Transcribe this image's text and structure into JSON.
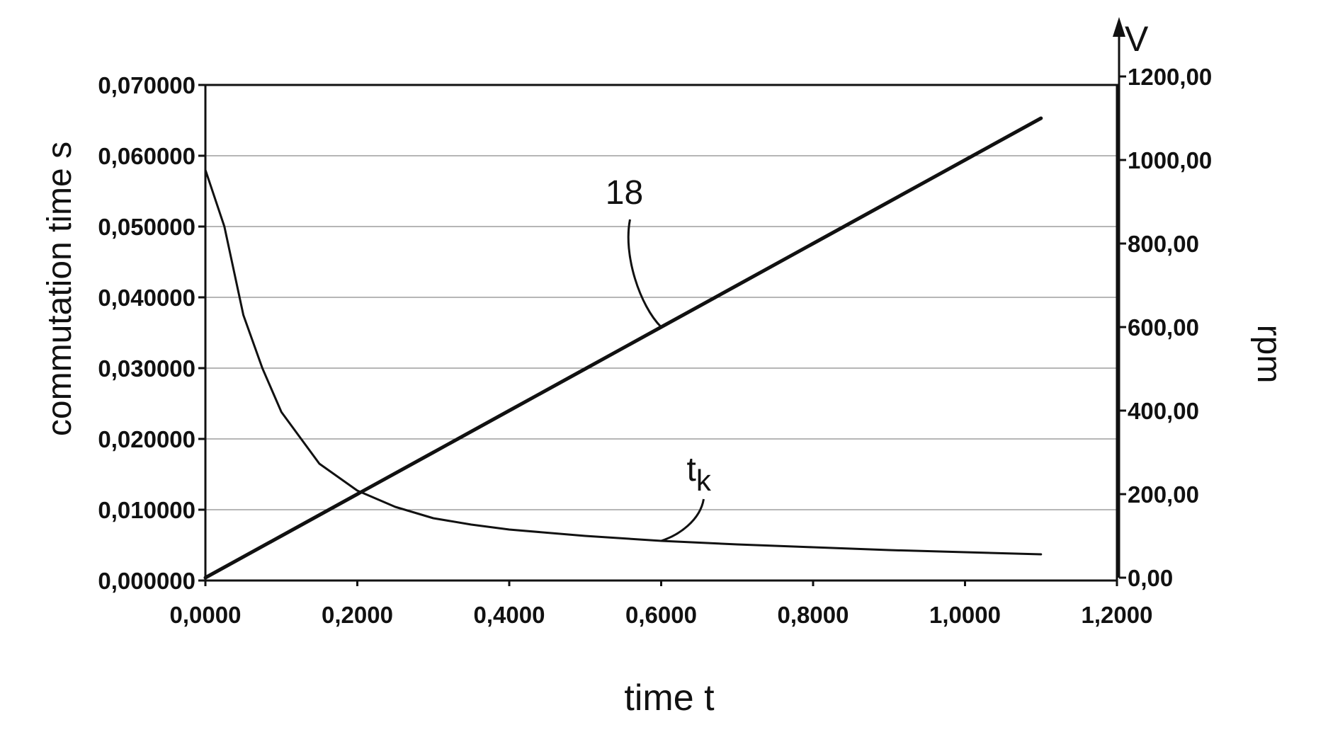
{
  "chart_data": {
    "type": "line",
    "title": "",
    "xlabel": "time t",
    "ylabel_left": "commutation time  s",
    "ylabel_right": "rpm",
    "right_axis_symbol": "V",
    "xlim": [
      0,
      1.2
    ],
    "ylim_left": [
      0,
      0.07
    ],
    "ylim_right": [
      0,
      1200
    ],
    "grid": "horizontal",
    "legend": "none",
    "x_ticks": [
      "0,0000",
      "0,2000",
      "0,4000",
      "0,6000",
      "0,8000",
      "1,0000",
      "1,2000"
    ],
    "x_tick_values": [
      0,
      0.2,
      0.4,
      0.6,
      0.8,
      1.0,
      1.2
    ],
    "y_left_ticks": [
      "0,000000",
      "0,010000",
      "0,020000",
      "0,030000",
      "0,040000",
      "0,050000",
      "0,060000",
      "0,070000"
    ],
    "y_left_tick_values": [
      0,
      0.01,
      0.02,
      0.03,
      0.04,
      0.05,
      0.06,
      0.07
    ],
    "y_right_ticks": [
      "0,00",
      "200,00",
      "400,00",
      "600,00",
      "800,00",
      "1000,00",
      "1200,00"
    ],
    "y_right_tick_values": [
      0,
      200,
      400,
      600,
      800,
      1000,
      1200
    ],
    "series": [
      {
        "axis": "right",
        "x": [
          0,
          0.1,
          0.2,
          0.3,
          0.4,
          0.5,
          0.6,
          0.7,
          0.8,
          0.9,
          1.0,
          1.1
        ],
        "values": [
          0,
          100,
          200,
          300,
          400,
          500,
          600,
          700,
          800,
          900,
          1000,
          1100
        ]
      },
      {
        "axis": "left",
        "x": [
          0,
          0.025,
          0.05,
          0.075,
          0.1,
          0.15,
          0.2,
          0.25,
          0.3,
          0.35,
          0.4,
          0.5,
          0.6,
          0.7,
          0.8,
          0.9,
          1.0,
          1.1
        ],
        "values": [
          0.058,
          0.05,
          0.0375,
          0.03,
          0.0238,
          0.0165,
          0.0127,
          0.0104,
          0.0088,
          0.0079,
          0.0072,
          0.0063,
          0.0056,
          0.0051,
          0.0047,
          0.0043,
          0.004,
          0.0037
        ]
      }
    ],
    "annotations": [
      {
        "text": "18",
        "series": 0,
        "x": 0.6
      },
      {
        "text": "t",
        "sub": "k",
        "series": 1,
        "x": 0.6
      }
    ]
  }
}
